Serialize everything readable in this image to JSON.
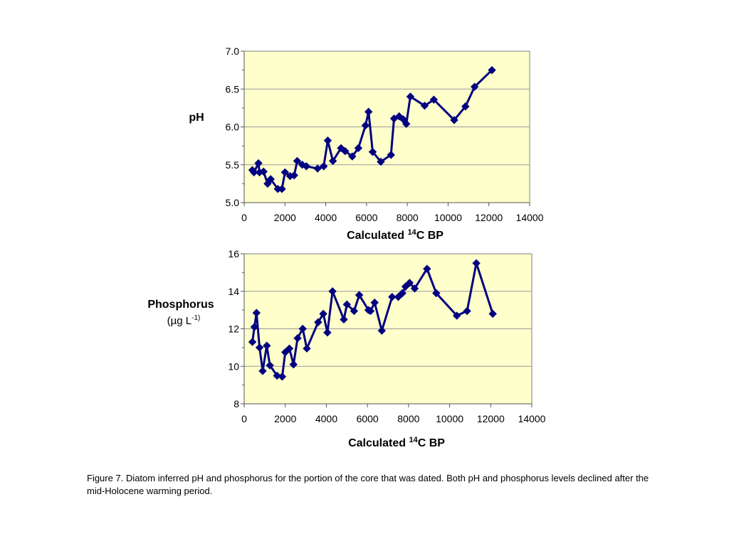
{
  "colors": {
    "plot_bg": "#FFFFCC",
    "series": "#000080",
    "grid": "#9a9a9a",
    "frame": "#808080"
  },
  "chart_data": [
    {
      "type": "line",
      "ylabel": "pH",
      "ylabel_sub": "",
      "xlabel_pre": "Calculated ",
      "xlabel_sup": "14",
      "xlabel_post": "C BP",
      "xlim": [
        0,
        14000
      ],
      "ylim": [
        5.0,
        7.0
      ],
      "xticks": [
        0,
        2000,
        4000,
        6000,
        8000,
        10000,
        12000,
        14000
      ],
      "xtick_labels": [
        "0",
        "2000",
        "4000",
        "6000",
        "8000",
        "10000",
        "12000",
        "14000"
      ],
      "yticks": [
        5.0,
        5.5,
        6.0,
        6.5,
        7.0
      ],
      "ytick_labels": [
        "5.0",
        "5.5",
        "6.0",
        "6.5",
        "7.0"
      ],
      "grid": true,
      "series": [
        {
          "name": "pH",
          "x": [
            400,
            480,
            700,
            750,
            950,
            1150,
            1300,
            1650,
            1850,
            2000,
            2250,
            2450,
            2600,
            2850,
            3050,
            3600,
            3900,
            4100,
            4350,
            4750,
            4950,
            5300,
            5600,
            5950,
            6100,
            6300,
            6700,
            7200,
            7350,
            7600,
            7800,
            7950,
            8150,
            8850,
            9300,
            10300,
            10850,
            11300,
            12150
          ],
          "y": [
            5.43,
            5.4,
            5.52,
            5.4,
            5.41,
            5.25,
            5.31,
            5.18,
            5.18,
            5.4,
            5.35,
            5.36,
            5.55,
            5.5,
            5.48,
            5.45,
            5.48,
            5.82,
            5.55,
            5.72,
            5.68,
            5.61,
            5.72,
            6.02,
            6.2,
            5.67,
            5.54,
            5.63,
            6.11,
            6.14,
            6.1,
            6.04,
            6.4,
            6.28,
            6.36,
            6.09,
            6.27,
            6.53,
            6.75
          ]
        }
      ]
    },
    {
      "type": "line",
      "ylabel": "Phosphorus",
      "ylabel_sub": "(µg L",
      "ylabel_sup": "-1)",
      "xlabel_pre": "Calculated ",
      "xlabel_sup": "14",
      "xlabel_post": "C BP",
      "xlim": [
        0,
        14000
      ],
      "ylim": [
        8,
        16
      ],
      "xticks": [
        0,
        2000,
        4000,
        6000,
        8000,
        10000,
        12000,
        14000
      ],
      "xtick_labels": [
        "0",
        "2000",
        "4000",
        "6000",
        "8000",
        "10000",
        "12000",
        "14000"
      ],
      "yticks": [
        8,
        10,
        12,
        14,
        16
      ],
      "ytick_labels": [
        "8",
        "10",
        "12",
        "14",
        "16"
      ],
      "grid": true,
      "series": [
        {
          "name": "Phosphorus",
          "x": [
            400,
            500,
            600,
            750,
            900,
            1100,
            1250,
            1600,
            1850,
            2000,
            2200,
            2400,
            2600,
            2850,
            3050,
            3600,
            3850,
            4050,
            4300,
            4850,
            5000,
            5350,
            5600,
            6050,
            6150,
            6350,
            6700,
            7200,
            7500,
            7700,
            7850,
            8050,
            8300,
            8900,
            9350,
            10350,
            10850,
            11300,
            12100
          ],
          "y": [
            11.3,
            12.1,
            12.85,
            11.0,
            9.75,
            11.1,
            10.05,
            9.5,
            9.45,
            10.75,
            10.95,
            10.1,
            11.5,
            12.0,
            10.95,
            12.35,
            12.8,
            11.8,
            14.0,
            12.5,
            13.3,
            12.95,
            13.8,
            13.0,
            12.95,
            13.4,
            11.9,
            13.7,
            13.7,
            13.9,
            14.25,
            14.45,
            14.15,
            15.2,
            13.9,
            12.7,
            12.95,
            15.5,
            12.8
          ]
        }
      ]
    }
  ],
  "caption": "Figure 7.  Diatom inferred pH and phosphorus for the portion of the core that was dated. Both pH and phosphorus levels declined after the mid-Holocene warming period."
}
